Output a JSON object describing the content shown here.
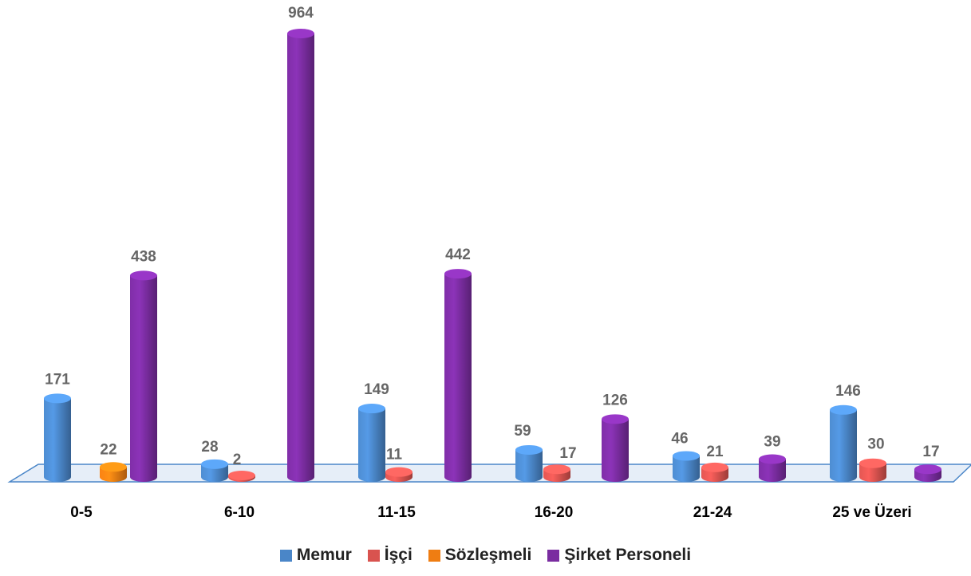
{
  "chart_data": {
    "type": "bar",
    "categories": [
      "0-5",
      "6-10",
      "11-15",
      "16-20",
      "21-24",
      "25 ve Üzeri"
    ],
    "series": [
      {
        "name": "Memur",
        "color": "#4a86c8",
        "values": [
          171,
          28,
          149,
          59,
          46,
          146
        ]
      },
      {
        "name": "İşçi",
        "color": "#d9534f",
        "values": [
          0,
          2,
          11,
          17,
          21,
          30
        ]
      },
      {
        "name": "Sözleşmeli",
        "color": "#ef7d12",
        "values": [
          22,
          0,
          0,
          0,
          0,
          0
        ]
      },
      {
        "name": "Şirket Personeli",
        "color": "#7a2ca0",
        "values": [
          438,
          964,
          442,
          126,
          39,
          17
        ]
      }
    ],
    "data_labels": [
      {
        "series": 0,
        "category": 0,
        "text": "171"
      },
      {
        "series": 2,
        "category": 0,
        "text": "22"
      },
      {
        "series": 3,
        "category": 0,
        "text": "438"
      },
      {
        "series": 0,
        "category": 1,
        "text": "28"
      },
      {
        "series": 1,
        "category": 1,
        "text": "2"
      },
      {
        "series": 3,
        "category": 1,
        "text": "964"
      },
      {
        "series": 0,
        "category": 2,
        "text": "149"
      },
      {
        "series": 1,
        "category": 2,
        "text": "11"
      },
      {
        "series": 3,
        "category": 2,
        "text": "442"
      },
      {
        "series": 0,
        "category": 3,
        "text": "59"
      },
      {
        "series": 1,
        "category": 3,
        "text": "17"
      },
      {
        "series": 3,
        "category": 3,
        "text": "126"
      },
      {
        "series": 0,
        "category": 4,
        "text": "46"
      },
      {
        "series": 1,
        "category": 4,
        "text": "21"
      },
      {
        "series": 3,
        "category": 4,
        "text": "39"
      },
      {
        "series": 0,
        "category": 5,
        "text": "146"
      },
      {
        "series": 1,
        "category": 5,
        "text": "30"
      },
      {
        "series": 3,
        "category": 5,
        "text": "17"
      }
    ],
    "legend_position": "bottom",
    "grid": false,
    "ylim": [
      0,
      964
    ]
  }
}
